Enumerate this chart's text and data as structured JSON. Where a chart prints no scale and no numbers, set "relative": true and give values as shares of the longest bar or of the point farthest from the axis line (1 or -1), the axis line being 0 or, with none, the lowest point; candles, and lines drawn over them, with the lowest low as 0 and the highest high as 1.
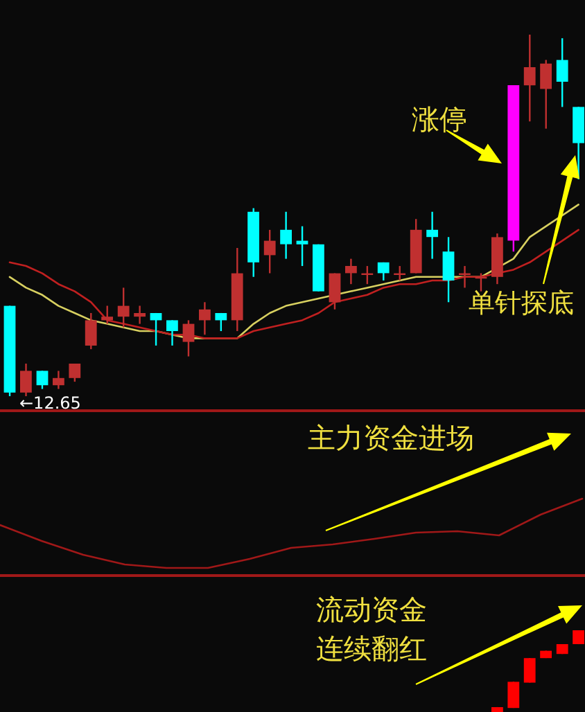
{
  "chart_data": [
    {
      "type": "candlestick",
      "relative": true,
      "categories": [
        null,
        null,
        null,
        null,
        null,
        null,
        null,
        null,
        null,
        null,
        null,
        null,
        null,
        null,
        null,
        null,
        null,
        null,
        null,
        null,
        null,
        null,
        null,
        null,
        null,
        null,
        null,
        null,
        null,
        null,
        null,
        null,
        null,
        null,
        null,
        null
      ],
      "ohlc": [
        [
          0.25,
          0.25,
          0.0,
          0.01
        ],
        [
          0.01,
          0.09,
          0.0,
          0.07
        ],
        [
          0.07,
          0.07,
          0.02,
          0.03
        ],
        [
          0.03,
          0.07,
          0.02,
          0.05
        ],
        [
          0.05,
          0.09,
          0.04,
          0.09
        ],
        [
          0.14,
          0.23,
          0.13,
          0.21
        ],
        [
          0.21,
          0.25,
          0.2,
          0.22
        ],
        [
          0.22,
          0.3,
          0.19,
          0.25
        ],
        [
          0.22,
          0.25,
          0.2,
          0.23
        ],
        [
          0.23,
          0.23,
          0.14,
          0.21
        ],
        [
          0.21,
          0.21,
          0.14,
          0.18
        ],
        [
          0.15,
          0.21,
          0.11,
          0.2
        ],
        [
          0.21,
          0.26,
          0.17,
          0.24
        ],
        [
          0.23,
          0.23,
          0.18,
          0.21
        ],
        [
          0.21,
          0.41,
          0.18,
          0.34
        ],
        [
          0.51,
          0.52,
          0.33,
          0.37
        ],
        [
          0.39,
          0.46,
          0.34,
          0.43
        ],
        [
          0.46,
          0.51,
          0.38,
          0.42
        ],
        [
          0.43,
          0.47,
          0.36,
          0.42
        ],
        [
          0.42,
          0.42,
          0.29,
          0.29
        ],
        [
          0.26,
          0.34,
          0.24,
          0.34
        ],
        [
          0.34,
          0.38,
          0.31,
          0.36
        ],
        [
          0.34,
          0.36,
          0.31,
          0.34
        ],
        [
          0.37,
          0.37,
          0.32,
          0.34
        ],
        [
          0.34,
          0.36,
          0.32,
          0.34
        ],
        [
          0.34,
          0.49,
          0.34,
          0.46
        ],
        [
          0.46,
          0.51,
          0.38,
          0.44
        ],
        [
          0.4,
          0.44,
          0.26,
          0.32
        ],
        [
          0.34,
          0.36,
          0.3,
          0.34
        ],
        [
          0.33,
          0.34,
          0.29,
          0.33
        ],
        [
          0.33,
          0.45,
          0.31,
          0.44
        ],
        [
          0.43,
          0.86,
          0.4,
          0.86
        ],
        [
          0.86,
          1.0,
          0.76,
          0.91
        ],
        [
          0.85,
          0.93,
          0.74,
          0.92
        ],
        [
          0.93,
          0.99,
          0.8,
          0.87
        ],
        [
          0.8,
          0.8,
          0.6,
          0.7
        ]
      ],
      "colors": [
        "#00ffff",
        "#c03030",
        "#00ffff",
        "#c03030",
        "#c03030",
        "#c03030",
        "#c03030",
        "#c03030",
        "#c03030",
        "#00ffff",
        "#00ffff",
        "#c03030",
        "#c03030",
        "#00ffff",
        "#c03030",
        "#00ffff",
        "#c03030",
        "#00ffff",
        "#00ffff",
        "#00ffff",
        "#c03030",
        "#c03030",
        "#c03030",
        "#00ffff",
        "#c03030",
        "#c03030",
        "#00ffff",
        "#00ffff",
        "#c03030",
        "#c03030",
        "#c03030",
        "#ff00ff",
        "#c03030",
        "#c03030",
        "#00ffff",
        "#00ffff"
      ],
      "series": [
        {
          "type": "line",
          "color": "#d8d060",
          "values": [
            0.33,
            0.3,
            0.28,
            0.25,
            0.23,
            0.21,
            0.2,
            0.19,
            0.18,
            0.18,
            0.17,
            0.16,
            0.16,
            0.16,
            0.16,
            0.2,
            0.23,
            0.25,
            0.26,
            0.27,
            null,
            0.29,
            0.3,
            0.31,
            0.32,
            0.33,
            0.33,
            null,
            0.33,
            0.33,
            null,
            0.38,
            0.44,
            0.47,
            null,
            0.53
          ]
        },
        {
          "type": "line",
          "color": "#c02020",
          "values": [
            0.37,
            0.36,
            0.34,
            0.31,
            0.29,
            0.26,
            0.21,
            0.2,
            0.19,
            0.18,
            0.17,
            0.17,
            0.16,
            0.16,
            0.16,
            0.18,
            0.19,
            0.2,
            0.21,
            0.23,
            0.26,
            0.27,
            0.28,
            0.3,
            0.31,
            0.31,
            0.32,
            0.32,
            0.33,
            0.33,
            0.34,
            0.35,
            0.37,
            0.4,
            0.43,
            0.46
          ]
        }
      ],
      "annotations": [
        "←12.65",
        "涨停",
        "单针探底"
      ]
    },
    {
      "type": "line",
      "relative": true,
      "categories": [
        null,
        null,
        null,
        null,
        null,
        null,
        null,
        null,
        null,
        null,
        null,
        null,
        null,
        null,
        null
      ],
      "series": [
        {
          "color": "#a01818",
          "values": [
            0.62,
            0.39,
            0.19,
            0.05,
            0,
            0,
            0.13,
            0.29,
            0.34,
            0.42,
            0.51,
            0.53,
            0.47,
            0.77,
            1
          ]
        }
      ],
      "annotations": [
        "主力资金进场"
      ]
    },
    {
      "type": "candlestick",
      "relative": true,
      "categories": [
        null,
        null,
        null,
        null,
        null,
        null,
        null,
        null,
        null,
        null,
        null,
        null,
        null,
        null,
        null,
        null,
        null,
        null,
        null,
        null,
        null,
        null,
        null,
        null,
        null,
        null,
        null,
        null,
        null,
        null,
        null,
        null,
        null,
        null,
        null,
        null
      ],
      "ohlc": [
        null,
        null,
        null,
        null,
        null,
        null,
        null,
        null,
        null,
        null,
        null,
        null,
        null,
        null,
        null,
        null,
        null,
        null,
        null,
        null,
        null,
        null,
        null,
        null,
        null,
        null,
        null,
        null,
        null,
        null,
        [
          0,
          0.06,
          0,
          0.06
        ],
        [
          0.05,
          0.37,
          0.05,
          0.37
        ],
        [
          0.36,
          0.66,
          0.36,
          0.66
        ],
        [
          0.66,
          0.75,
          0.66,
          0.75
        ],
        [
          0.71,
          0.83,
          0.71,
          0.83
        ],
        [
          0.83,
          1,
          0.83,
          1
        ]
      ],
      "colors": [
        null,
        null,
        null,
        null,
        null,
        null,
        null,
        null,
        null,
        null,
        null,
        null,
        null,
        null,
        null,
        null,
        null,
        null,
        null,
        null,
        null,
        null,
        null,
        null,
        null,
        null,
        null,
        null,
        null,
        null,
        "#ff0000",
        "#ff0000",
        "#ff0000",
        "#ff0000",
        "#ff0000",
        "#ff0000"
      ],
      "annotations": [
        "流动资金",
        "连续翻红"
      ]
    }
  ]
}
